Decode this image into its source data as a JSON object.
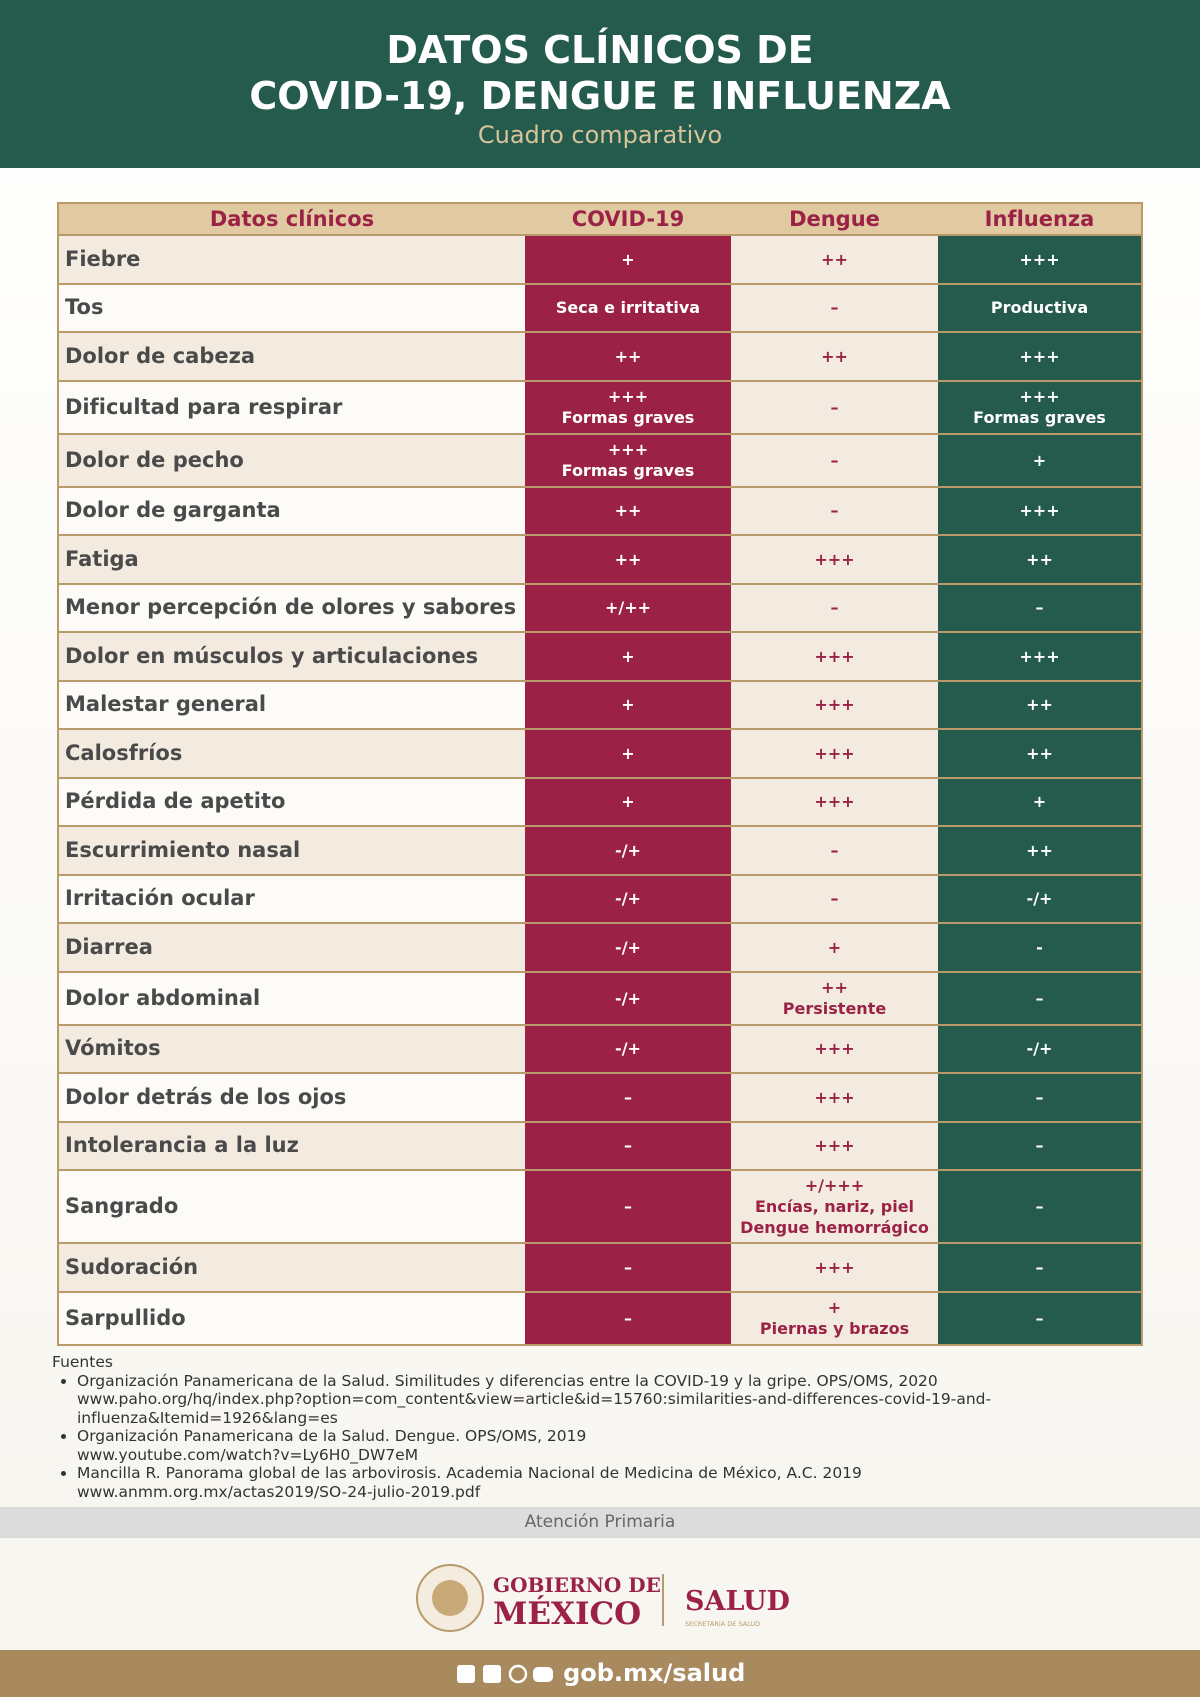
{
  "header": {
    "title_lines": [
      "DATOS CLÍNICOS DE",
      "COVID-19, DENGUE E INFLUENZA"
    ],
    "subtitle": "Cuadro comparativo"
  },
  "table": {
    "columns": [
      "Datos clínicos",
      "COVID-19",
      "Dengue",
      "Influenza"
    ],
    "rows": [
      [
        [
          "Fiebre"
        ],
        [
          "+"
        ],
        [
          "++"
        ],
        [
          "+++"
        ]
      ],
      [
        [
          "Tos"
        ],
        [
          "Seca e irritativa"
        ],
        [
          "–"
        ],
        [
          "Productiva"
        ]
      ],
      [
        [
          "Dolor de cabeza"
        ],
        [
          "++"
        ],
        [
          "++"
        ],
        [
          "+++"
        ]
      ],
      [
        [
          "Dificultad para respirar"
        ],
        [
          "+++",
          "Formas graves"
        ],
        [
          "–"
        ],
        [
          "+++",
          "Formas graves"
        ]
      ],
      [
        [
          "Dolor de pecho"
        ],
        [
          "+++",
          "Formas graves"
        ],
        [
          "–"
        ],
        [
          "+"
        ]
      ],
      [
        [
          "Dolor de garganta"
        ],
        [
          "++"
        ],
        [
          "–"
        ],
        [
          "+++"
        ]
      ],
      [
        [
          "Fatiga"
        ],
        [
          "++"
        ],
        [
          "+++"
        ],
        [
          "++"
        ]
      ],
      [
        [
          "Menor percepción de olores y sabores"
        ],
        [
          "+/++"
        ],
        [
          "–"
        ],
        [
          "–"
        ]
      ],
      [
        [
          "Dolor en músculos y articulaciones"
        ],
        [
          "+"
        ],
        [
          "+++"
        ],
        [
          "+++"
        ]
      ],
      [
        [
          "Malestar general"
        ],
        [
          "+"
        ],
        [
          "+++"
        ],
        [
          "++"
        ]
      ],
      [
        [
          "Calosfríos"
        ],
        [
          "+"
        ],
        [
          "+++"
        ],
        [
          "++"
        ]
      ],
      [
        [
          "Pérdida de apetito"
        ],
        [
          "+"
        ],
        [
          "+++"
        ],
        [
          "+"
        ]
      ],
      [
        [
          "Escurrimiento nasal"
        ],
        [
          "-/+"
        ],
        [
          "–"
        ],
        [
          "++"
        ]
      ],
      [
        [
          "Irritación ocular"
        ],
        [
          "-/+"
        ],
        [
          "–"
        ],
        [
          "-/+"
        ]
      ],
      [
        [
          "Diarrea"
        ],
        [
          "-/+"
        ],
        [
          "+"
        ],
        [
          "-"
        ]
      ],
      [
        [
          "Dolor abdominal"
        ],
        [
          "-/+"
        ],
        [
          "++",
          "Persistente"
        ],
        [
          "–"
        ]
      ],
      [
        [
          "Vómitos"
        ],
        [
          "-/+"
        ],
        [
          "+++"
        ],
        [
          "-/+"
        ]
      ],
      [
        [
          "Dolor detrás de los ojos"
        ],
        [
          "–"
        ],
        [
          "+++"
        ],
        [
          "–"
        ]
      ],
      [
        [
          "Intolerancia a la luz"
        ],
        [
          "–"
        ],
        [
          "+++"
        ],
        [
          "–"
        ]
      ],
      [
        [
          "Sangrado"
        ],
        [
          "–"
        ],
        [
          "+/+++",
          "Encías, nariz, piel",
          "Dengue hemorrágico"
        ],
        [
          "–"
        ]
      ],
      [
        [
          "Sudoración"
        ],
        [
          "–"
        ],
        [
          "+++"
        ],
        [
          "–"
        ]
      ],
      [
        [
          "Sarpullido"
        ],
        [
          "–"
        ],
        [
          "+",
          "Piernas y brazos"
        ],
        [
          "–"
        ]
      ]
    ]
  },
  "sources": {
    "title": "Fuentes",
    "items": [
      [
        "Organización Panamericana de la Salud. Similitudes y diferencias entre la COVID-19 y la gripe. OPS/OMS, 2020",
        "www.paho.org/hq/index.php?option=com_content&view=article&id=15760:similarities-and-differences-covid-19-and-",
        "influenza&Itemid=1926&lang=es"
      ],
      [
        "Organización Panamericana de la Salud. Dengue. OPS/OMS, 2019",
        "www.youtube.com/watch?v=Ly6H0_DW7eM"
      ],
      [
        "Mancilla R. Panorama global de las arbovirosis. Academia Nacional de Medicina de México, A.C. 2019",
        "www.anmm.org.mx/actas2019/SO-24-julio-2019.pdf"
      ]
    ]
  },
  "band": "Atención Primaria",
  "logo": {
    "gov_line1": "GOBIERNO DE",
    "gov_line2": "MÉXICO",
    "salud": "SALUD",
    "salud_sub": "SECRETARÍA DE SALUD"
  },
  "footer": {
    "url": "gob.mx/salud"
  }
}
